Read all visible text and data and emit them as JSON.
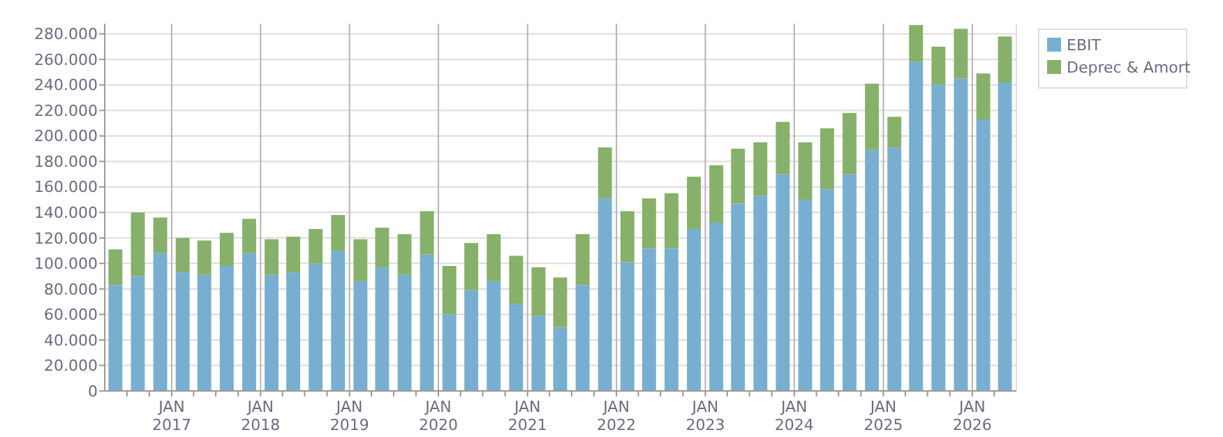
{
  "chart_data": {
    "type": "bar",
    "stacked": true,
    "x": [
      "2016-05-15",
      "2016-08-15",
      "2016-11-15",
      "2017-02-15",
      "2017-05-15",
      "2017-08-15",
      "2017-11-15",
      "2018-02-15",
      "2018-05-15",
      "2018-08-15",
      "2018-11-15",
      "2019-02-15",
      "2019-05-15",
      "2019-08-15",
      "2019-11-15",
      "2020-02-15",
      "2020-05-15",
      "2020-08-15",
      "2020-11-15",
      "2021-02-15",
      "2021-05-15",
      "2021-08-15",
      "2021-11-15",
      "2022-02-15",
      "2022-05-15",
      "2022-08-15",
      "2022-11-15",
      "2023-02-15",
      "2023-05-15",
      "2023-08-15",
      "2023-11-15",
      "2024-02-15",
      "2024-05-15",
      "2024-08-15",
      "2024-11-15",
      "2025-02-15",
      "2025-05-15",
      "2025-08-15",
      "2025-11-15",
      "2026-02-15",
      "2026-05-15"
    ],
    "series": [
      {
        "name": "EBIT",
        "color": "#78afd0",
        "values": [
          83000,
          90000,
          108000,
          93000,
          91000,
          98000,
          108000,
          91000,
          93000,
          100000,
          110000,
          86000,
          97000,
          91000,
          107000,
          60000,
          79000,
          86000,
          68000,
          59000,
          50000,
          83000,
          151000,
          101000,
          112000,
          112000,
          127000,
          132000,
          147000,
          153000,
          170000,
          150000,
          158000,
          170000,
          189000,
          191000,
          258000,
          240000,
          245000,
          213000,
          242000
        ]
      },
      {
        "name": "Deprec & Amort",
        "color": "#87b06a",
        "values": [
          28000,
          50000,
          28000,
          27000,
          27000,
          26000,
          27000,
          28000,
          28000,
          27000,
          28000,
          33000,
          31000,
          32000,
          34000,
          38000,
          37000,
          37000,
          38000,
          38000,
          39000,
          40000,
          40000,
          40000,
          39000,
          43000,
          41000,
          45000,
          43000,
          42000,
          41000,
          45000,
          48000,
          48000,
          52000,
          24000,
          29000,
          30000,
          39000,
          36000,
          36000
        ]
      }
    ],
    "xlim": [
      "2016-04-01",
      "2026-07-01"
    ],
    "xticks": [
      {
        "value": "2016-07-01",
        "label": null
      },
      {
        "value": "2016-10-01",
        "label": null
      },
      {
        "value": "2017-01-01",
        "label": "JAN\n2017"
      },
      {
        "value": "2017-04-01",
        "label": null
      },
      {
        "value": "2017-07-01",
        "label": null
      },
      {
        "value": "2017-10-01",
        "label": null
      },
      {
        "value": "2018-01-01",
        "label": "JAN\n2018"
      },
      {
        "value": "2018-04-01",
        "label": null
      },
      {
        "value": "2018-07-01",
        "label": null
      },
      {
        "value": "2018-10-01",
        "label": null
      },
      {
        "value": "2019-01-01",
        "label": "JAN\n2019"
      },
      {
        "value": "2019-04-01",
        "label": null
      },
      {
        "value": "2019-07-01",
        "label": null
      },
      {
        "value": "2019-10-01",
        "label": null
      },
      {
        "value": "2020-01-01",
        "label": "JAN\n2020"
      },
      {
        "value": "2020-04-01",
        "label": null
      },
      {
        "value": "2020-07-01",
        "label": null
      },
      {
        "value": "2020-10-01",
        "label": null
      },
      {
        "value": "2021-01-01",
        "label": "JAN\n2021"
      },
      {
        "value": "2021-04-01",
        "label": null
      },
      {
        "value": "2021-07-01",
        "label": null
      },
      {
        "value": "2021-10-01",
        "label": null
      },
      {
        "value": "2022-01-01",
        "label": "JAN\n2022"
      },
      {
        "value": "2022-04-01",
        "label": null
      },
      {
        "value": "2022-07-01",
        "label": null
      },
      {
        "value": "2022-10-01",
        "label": null
      },
      {
        "value": "2023-01-01",
        "label": "JAN\n2023"
      },
      {
        "value": "2023-04-01",
        "label": null
      },
      {
        "value": "2023-07-01",
        "label": null
      },
      {
        "value": "2023-10-01",
        "label": null
      },
      {
        "value": "2024-01-01",
        "label": "JAN\n2024"
      },
      {
        "value": "2024-04-01",
        "label": null
      },
      {
        "value": "2024-07-01",
        "label": null
      },
      {
        "value": "2024-10-01",
        "label": null
      },
      {
        "value": "2025-01-01",
        "label": "JAN\n2025"
      },
      {
        "value": "2025-04-01",
        "label": null
      },
      {
        "value": "2025-07-01",
        "label": null
      },
      {
        "value": "2025-10-01",
        "label": null
      },
      {
        "value": "2026-01-01",
        "label": "JAN\n2026"
      },
      {
        "value": "2026-04-01",
        "label": null
      }
    ],
    "ylim": [
      0,
      288000
    ],
    "yticks": [
      0,
      {
        "value": 20000,
        "label": "20.000"
      },
      {
        "value": 40000,
        "label": "40.000"
      },
      {
        "value": 60000,
        "label": "60.000"
      },
      {
        "value": 80000,
        "label": "80.000"
      },
      {
        "value": 100000,
        "label": "100.000"
      },
      {
        "value": 120000,
        "label": "120.000"
      },
      {
        "value": 140000,
        "label": "140.000"
      },
      {
        "value": 160000,
        "label": "160.000"
      },
      {
        "value": 180000,
        "label": "180.000"
      },
      {
        "value": 200000,
        "label": "200.000"
      },
      {
        "value": 220000,
        "label": "220.000"
      },
      {
        "value": 240000,
        "label": "240.000"
      },
      {
        "value": 260000,
        "label": "260.000"
      },
      {
        "value": 280000,
        "label": "280.000"
      }
    ],
    "grid": true,
    "legend": "top right"
  }
}
